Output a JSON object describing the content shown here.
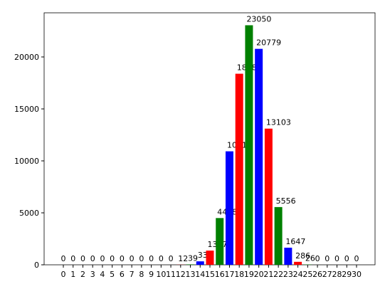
{
  "chart_data": {
    "type": "bar",
    "categories": [
      "0",
      "1",
      "2",
      "3",
      "4",
      "5",
      "6",
      "7",
      "8",
      "9",
      "10",
      "11",
      "12",
      "13",
      "14",
      "15",
      "16",
      "17",
      "18",
      "19",
      "20",
      "21",
      "22",
      "23",
      "24",
      "25",
      "26",
      "27",
      "28",
      "29",
      "30"
    ],
    "values": [
      0,
      0,
      0,
      0,
      0,
      0,
      0,
      0,
      0,
      0,
      0,
      0,
      12,
      39,
      333,
      1367,
      4498,
      10919,
      18385,
      23050,
      20779,
      13103,
      5556,
      1647,
      286,
      26,
      0,
      0,
      0,
      0,
      0
    ],
    "colors": [
      "red",
      "green",
      "blue"
    ],
    "ylim": [
      0,
      24247
    ],
    "yticks": [
      0,
      5000,
      10000,
      15000,
      20000
    ]
  }
}
